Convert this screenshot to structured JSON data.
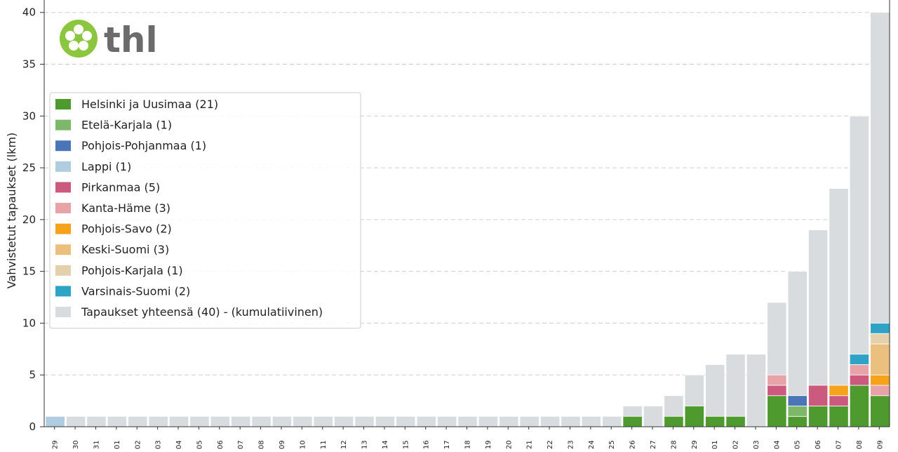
{
  "chart_data": {
    "type": "bar",
    "logo": "thl",
    "ylabel": "Vahvistetut tapaukset (lkm)",
    "categories": [
      "1-29",
      "1-30",
      "1-31",
      "2-01",
      "2-02",
      "2-03",
      "2-04",
      "2-05",
      "2-06",
      "2-07",
      "2-08",
      "2-09",
      "2-10",
      "2-11",
      "2-12",
      "2-13",
      "2-14",
      "2-15",
      "2-16",
      "2-17",
      "2-18",
      "2-19",
      "2-20",
      "2-21",
      "2-22",
      "2-23",
      "2-24",
      "2-25",
      "2-26",
      "2-27",
      "2-28",
      "2-29",
      "3-01",
      "3-02",
      "3-03",
      "3-04",
      "3-05",
      "3-06",
      "3-07",
      "3-08",
      "3-09"
    ],
    "series": [
      {
        "name": "Helsinki ja Uusimaa (21)",
        "color": "#4e9a2f",
        "values": [
          0,
          0,
          0,
          0,
          0,
          0,
          0,
          0,
          0,
          0,
          0,
          0,
          0,
          0,
          0,
          0,
          0,
          0,
          0,
          0,
          0,
          0,
          0,
          0,
          0,
          0,
          0,
          0,
          1,
          0,
          1,
          2,
          1,
          1,
          0,
          3,
          1,
          2,
          2,
          4,
          3
        ]
      },
      {
        "name": "Etelä-Karjala (1)",
        "color": "#7db86a",
        "values": [
          0,
          0,
          0,
          0,
          0,
          0,
          0,
          0,
          0,
          0,
          0,
          0,
          0,
          0,
          0,
          0,
          0,
          0,
          0,
          0,
          0,
          0,
          0,
          0,
          0,
          0,
          0,
          0,
          0,
          0,
          0,
          0,
          0,
          0,
          0,
          0,
          1,
          0,
          0,
          0,
          0
        ]
      },
      {
        "name": "Pohjois-Pohjanmaa (1)",
        "color": "#4a76b8",
        "values": [
          0,
          0,
          0,
          0,
          0,
          0,
          0,
          0,
          0,
          0,
          0,
          0,
          0,
          0,
          0,
          0,
          0,
          0,
          0,
          0,
          0,
          0,
          0,
          0,
          0,
          0,
          0,
          0,
          0,
          0,
          0,
          0,
          0,
          0,
          0,
          0,
          1,
          0,
          0,
          0,
          0
        ]
      },
      {
        "name": "Lappi (1)",
        "color": "#b0cde0",
        "values": [
          1,
          0,
          0,
          0,
          0,
          0,
          0,
          0,
          0,
          0,
          0,
          0,
          0,
          0,
          0,
          0,
          0,
          0,
          0,
          0,
          0,
          0,
          0,
          0,
          0,
          0,
          0,
          0,
          0,
          0,
          0,
          0,
          0,
          0,
          0,
          0,
          0,
          0,
          0,
          0,
          0
        ]
      },
      {
        "name": "Pirkanmaa (5)",
        "color": "#cc5a7e",
        "values": [
          0,
          0,
          0,
          0,
          0,
          0,
          0,
          0,
          0,
          0,
          0,
          0,
          0,
          0,
          0,
          0,
          0,
          0,
          0,
          0,
          0,
          0,
          0,
          0,
          0,
          0,
          0,
          0,
          0,
          0,
          0,
          0,
          0,
          0,
          0,
          1,
          0,
          2,
          1,
          1,
          0
        ]
      },
      {
        "name": "Kanta-Häme (3)",
        "color": "#e8a3a8",
        "values": [
          0,
          0,
          0,
          0,
          0,
          0,
          0,
          0,
          0,
          0,
          0,
          0,
          0,
          0,
          0,
          0,
          0,
          0,
          0,
          0,
          0,
          0,
          0,
          0,
          0,
          0,
          0,
          0,
          0,
          0,
          0,
          0,
          0,
          0,
          0,
          1,
          0,
          0,
          0,
          1,
          1
        ]
      },
      {
        "name": "Pohjois-Savo (2)",
        "color": "#f7a21b",
        "values": [
          0,
          0,
          0,
          0,
          0,
          0,
          0,
          0,
          0,
          0,
          0,
          0,
          0,
          0,
          0,
          0,
          0,
          0,
          0,
          0,
          0,
          0,
          0,
          0,
          0,
          0,
          0,
          0,
          0,
          0,
          0,
          0,
          0,
          0,
          0,
          0,
          0,
          0,
          1,
          0,
          1
        ]
      },
      {
        "name": "Keski-Suomi (3)",
        "color": "#ebc07e",
        "values": [
          0,
          0,
          0,
          0,
          0,
          0,
          0,
          0,
          0,
          0,
          0,
          0,
          0,
          0,
          0,
          0,
          0,
          0,
          0,
          0,
          0,
          0,
          0,
          0,
          0,
          0,
          0,
          0,
          0,
          0,
          0,
          0,
          0,
          0,
          0,
          0,
          0,
          0,
          0,
          0,
          3
        ]
      },
      {
        "name": "Pohjois-Karjala (1)",
        "color": "#e3d0ad",
        "values": [
          0,
          0,
          0,
          0,
          0,
          0,
          0,
          0,
          0,
          0,
          0,
          0,
          0,
          0,
          0,
          0,
          0,
          0,
          0,
          0,
          0,
          0,
          0,
          0,
          0,
          0,
          0,
          0,
          0,
          0,
          0,
          0,
          0,
          0,
          0,
          0,
          0,
          0,
          0,
          0,
          1
        ]
      },
      {
        "name": "Varsinais-Suomi (2)",
        "color": "#2ea3c5",
        "values": [
          0,
          0,
          0,
          0,
          0,
          0,
          0,
          0,
          0,
          0,
          0,
          0,
          0,
          0,
          0,
          0,
          0,
          0,
          0,
          0,
          0,
          0,
          0,
          0,
          0,
          0,
          0,
          0,
          0,
          0,
          0,
          0,
          0,
          0,
          0,
          0,
          0,
          0,
          0,
          1,
          1
        ]
      }
    ],
    "total": {
      "name": "Tapaukset yhteensä (40) - (kumulatiivinen)",
      "color": "#d9dcdf",
      "values": [
        1,
        1,
        1,
        1,
        1,
        1,
        1,
        1,
        1,
        1,
        1,
        1,
        1,
        1,
        1,
        1,
        1,
        1,
        1,
        1,
        1,
        1,
        1,
        1,
        1,
        1,
        1,
        1,
        2,
        2,
        3,
        5,
        6,
        7,
        7,
        12,
        15,
        19,
        23,
        30,
        40
      ]
    },
    "ylim": [
      0,
      41.2
    ],
    "yticks": [
      0,
      5,
      10,
      15,
      20,
      25,
      30,
      35,
      40
    ],
    "grid": true,
    "legend": "upper left"
  }
}
